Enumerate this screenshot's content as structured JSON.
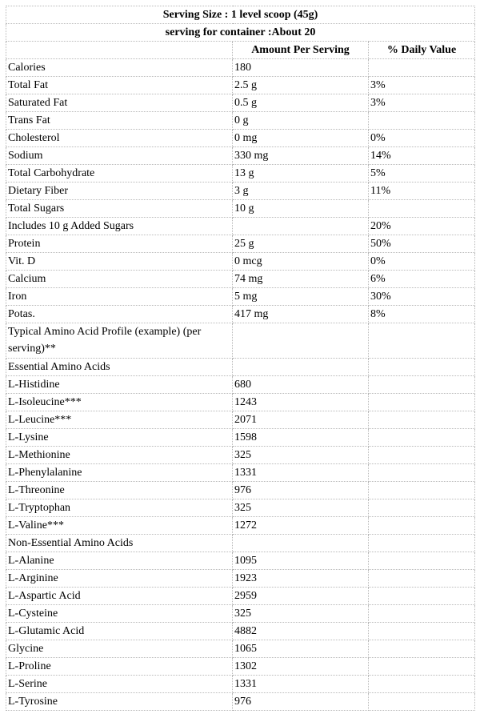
{
  "header": {
    "serving_size": "Serving Size : 1 level scoop (45g)",
    "servings_per_container": "serving for container :About 20"
  },
  "columns": {
    "name": "",
    "amount": "Amount Per Serving",
    "daily_value": "% Daily Value"
  },
  "rows": [
    {
      "name": "Calories",
      "amount": "180",
      "dv": ""
    },
    {
      "name": "Total Fat",
      "amount": "2.5 g",
      "dv": "3%"
    },
    {
      "name": "Saturated Fat",
      "amount": "0.5 g",
      "dv": "3%"
    },
    {
      "name": "Trans Fat",
      "amount": "0 g",
      "dv": ""
    },
    {
      "name": "Cholesterol",
      "amount": "0 mg",
      "dv": "0%"
    },
    {
      "name": "Sodium",
      "amount": "330 mg",
      "dv": "14%"
    },
    {
      "name": "Total Carbohydrate",
      "amount": "13 g",
      "dv": "5%"
    },
    {
      "name": "Dietary Fiber",
      "amount": "3 g",
      "dv": "11%"
    },
    {
      "name": "Total Sugars",
      "amount": "10 g",
      "dv": ""
    },
    {
      "name": "Includes 10 g Added Sugars",
      "amount": "",
      "dv": "20%"
    },
    {
      "name": "Protein",
      "amount": "25 g",
      "dv": "50%"
    },
    {
      "name": "Vit. D",
      "amount": "0 mcg",
      "dv": "0%"
    },
    {
      "name": "Calcium",
      "amount": "74 mg",
      "dv": "6%"
    },
    {
      "name": "Iron",
      "amount": "5 mg",
      "dv": "30%"
    },
    {
      "name": "Potas.",
      "amount": "417 mg",
      "dv": "8%"
    },
    {
      "name": "Typical Amino Acid Profile (example) (per serving)**",
      "amount": "",
      "dv": ""
    },
    {
      "name": "Essential Amino Acids",
      "amount": "",
      "dv": ""
    },
    {
      "name": "L-Histidine",
      "amount": "680",
      "dv": ""
    },
    {
      "name": "L-Isoleucine***",
      "amount": "1243",
      "dv": ""
    },
    {
      "name": "L-Leucine***",
      "amount": "2071",
      "dv": ""
    },
    {
      "name": "L-Lysine",
      "amount": "1598",
      "dv": ""
    },
    {
      "name": "L-Methionine",
      "amount": "325",
      "dv": ""
    },
    {
      "name": "L-Phenylalanine",
      "amount": "1331",
      "dv": ""
    },
    {
      "name": "L-Threonine",
      "amount": "976",
      "dv": ""
    },
    {
      "name": "L-Tryptophan",
      "amount": "325",
      "dv": ""
    },
    {
      "name": "L-Valine***",
      "amount": "1272",
      "dv": ""
    },
    {
      "name": "Non-Essential Amino Acids",
      "amount": "",
      "dv": ""
    },
    {
      "name": "L-Alanine",
      "amount": "1095",
      "dv": ""
    },
    {
      "name": "L-Arginine",
      "amount": "1923",
      "dv": ""
    },
    {
      "name": "L-Aspartic Acid",
      "amount": "2959",
      "dv": ""
    },
    {
      "name": "L-Cysteine",
      "amount": "325",
      "dv": ""
    },
    {
      "name": "L-Glutamic Acid",
      "amount": "4882",
      "dv": ""
    },
    {
      "name": "Glycine",
      "amount": "1065",
      "dv": ""
    },
    {
      "name": "L-Proline",
      "amount": "1302",
      "dv": ""
    },
    {
      "name": "L-Serine",
      "amount": "1331",
      "dv": ""
    },
    {
      "name": "L-Tyrosine",
      "amount": "976",
      "dv": ""
    }
  ]
}
